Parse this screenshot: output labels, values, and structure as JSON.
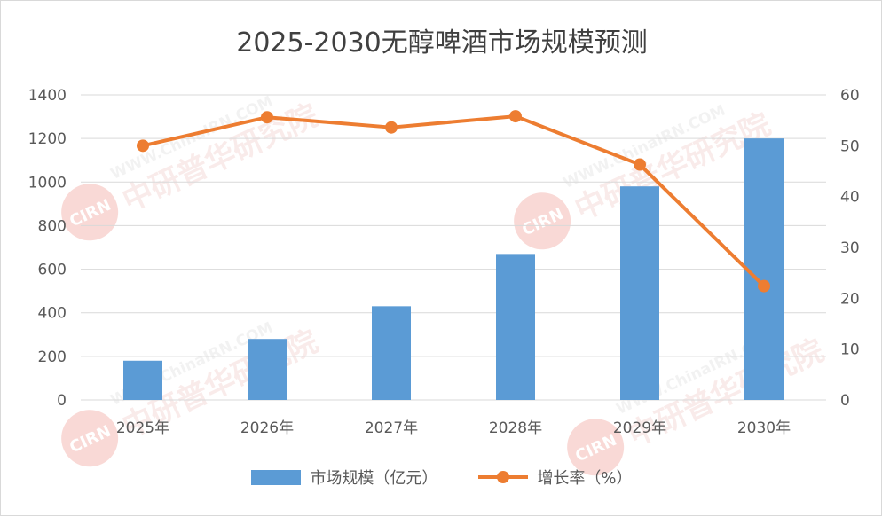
{
  "chart_data": {
    "type": "bar+line",
    "title": "2025-2030无醇啤酒市场规模预测",
    "categories": [
      "2025年",
      "2026年",
      "2027年",
      "2028年",
      "2029年",
      "2030年"
    ],
    "series": [
      {
        "name": "市场规模（亿元）",
        "type": "bar",
        "axis": "left",
        "color": "#5b9bd5",
        "values": [
          180,
          280,
          430,
          670,
          980,
          1200
        ]
      },
      {
        "name": "增长率（%）",
        "type": "line",
        "axis": "right",
        "color": "#ed7d31",
        "values": [
          50.0,
          55.6,
          53.6,
          55.8,
          46.3,
          22.4
        ]
      }
    ],
    "ylim_left": [
      0,
      1400
    ],
    "yticks_left": [
      0,
      200,
      400,
      600,
      800,
      1000,
      1200,
      1400
    ],
    "ylim_right": [
      0,
      60
    ],
    "yticks_right": [
      0,
      10,
      20,
      30,
      40,
      50,
      60
    ],
    "grid": true,
    "legend_position": "bottom"
  },
  "watermark": {
    "text": "中研普华研究院",
    "url": "WWW.ChinaIRN.COM",
    "logo": "CIRN"
  }
}
